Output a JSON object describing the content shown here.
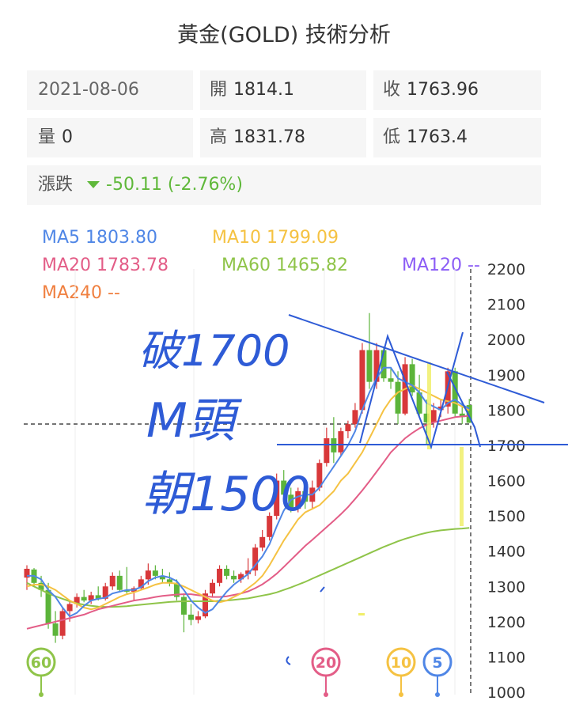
{
  "header": {
    "title": "黃金(GOLD) 技術分析"
  },
  "info": {
    "date": "2021-08-06",
    "open_label": "開",
    "open": "1814.1",
    "close_label": "收",
    "close": "1763.96",
    "volume_label": "量",
    "volume": "0",
    "high_label": "高",
    "high": "1831.78",
    "low_label": "低",
    "low": "1763.4",
    "change_label": "漲跌",
    "change": "-50.11 (-2.76%)"
  },
  "ma_legend": {
    "ma5": "MA5 1803.80",
    "ma10": "MA10 1799.09",
    "ma20": "MA20 1783.78",
    "ma60": "MA60 1465.82",
    "ma120": "MA120 --",
    "ma240": "MA240 --"
  },
  "colors": {
    "up": "#d8383a",
    "down": "#5cb43a",
    "ma5": "#4f86e6",
    "ma10": "#f5c242",
    "ma20": "#e35d87",
    "ma60": "#8fc449",
    "ma120": "#8b5cf6",
    "ma240": "#f08040",
    "annotation": "#2e5bd6",
    "highlight": "#f0ee6a"
  },
  "badges": [
    "60",
    "20",
    "10",
    "5"
  ],
  "annotations": {
    "line1": "破1700",
    "line2": "M頭",
    "line3": "朝1500"
  },
  "chart_data": {
    "type": "candlestick",
    "ylim": [
      1000,
      2200
    ],
    "y_ticks": [
      "2200",
      "2100",
      "2000",
      "1900",
      "1800",
      "1700",
      "1600",
      "1500",
      "1400",
      "1300",
      "1200",
      "1100",
      "1000"
    ],
    "candles": [
      {
        "o": 1325,
        "h": 1360,
        "l": 1290,
        "c": 1350
      },
      {
        "o": 1348,
        "h": 1352,
        "l": 1300,
        "c": 1310
      },
      {
        "o": 1310,
        "h": 1330,
        "l": 1270,
        "c": 1290
      },
      {
        "o": 1290,
        "h": 1310,
        "l": 1180,
        "c": 1195
      },
      {
        "o": 1195,
        "h": 1230,
        "l": 1140,
        "c": 1160
      },
      {
        "o": 1160,
        "h": 1240,
        "l": 1150,
        "c": 1230
      },
      {
        "o": 1230,
        "h": 1260,
        "l": 1200,
        "c": 1250
      },
      {
        "o": 1250,
        "h": 1280,
        "l": 1240,
        "c": 1270
      },
      {
        "o": 1270,
        "h": 1290,
        "l": 1255,
        "c": 1260
      },
      {
        "o": 1260,
        "h": 1285,
        "l": 1250,
        "c": 1275
      },
      {
        "o": 1275,
        "h": 1300,
        "l": 1260,
        "c": 1265
      },
      {
        "o": 1265,
        "h": 1310,
        "l": 1260,
        "c": 1300
      },
      {
        "o": 1300,
        "h": 1340,
        "l": 1290,
        "c": 1330
      },
      {
        "o": 1330,
        "h": 1345,
        "l": 1285,
        "c": 1290
      },
      {
        "o": 1290,
        "h": 1355,
        "l": 1280,
        "c": 1285
      },
      {
        "o": 1285,
        "h": 1300,
        "l": 1260,
        "c": 1295
      },
      {
        "o": 1295,
        "h": 1330,
        "l": 1290,
        "c": 1320
      },
      {
        "o": 1320,
        "h": 1365,
        "l": 1305,
        "c": 1345
      },
      {
        "o": 1345,
        "h": 1360,
        "l": 1320,
        "c": 1330
      },
      {
        "o": 1330,
        "h": 1350,
        "l": 1310,
        "c": 1320
      },
      {
        "o": 1320,
        "h": 1340,
        "l": 1300,
        "c": 1310
      },
      {
        "o": 1310,
        "h": 1320,
        "l": 1260,
        "c": 1270
      },
      {
        "o": 1270,
        "h": 1280,
        "l": 1170,
        "c": 1220
      },
      {
        "o": 1220,
        "h": 1250,
        "l": 1190,
        "c": 1205
      },
      {
        "o": 1205,
        "h": 1230,
        "l": 1195,
        "c": 1215
      },
      {
        "o": 1215,
        "h": 1290,
        "l": 1210,
        "c": 1280
      },
      {
        "o": 1280,
        "h": 1320,
        "l": 1270,
        "c": 1310
      },
      {
        "o": 1310,
        "h": 1360,
        "l": 1300,
        "c": 1350
      },
      {
        "o": 1350,
        "h": 1360,
        "l": 1320,
        "c": 1330
      },
      {
        "o": 1330,
        "h": 1345,
        "l": 1310,
        "c": 1320
      },
      {
        "o": 1320,
        "h": 1340,
        "l": 1310,
        "c": 1335
      },
      {
        "o": 1335,
        "h": 1380,
        "l": 1320,
        "c": 1345
      },
      {
        "o": 1345,
        "h": 1420,
        "l": 1330,
        "c": 1410
      },
      {
        "o": 1410,
        "h": 1460,
        "l": 1400,
        "c": 1440
      },
      {
        "o": 1440,
        "h": 1510,
        "l": 1430,
        "c": 1500
      },
      {
        "o": 1500,
        "h": 1620,
        "l": 1490,
        "c": 1600
      },
      {
        "o": 1600,
        "h": 1630,
        "l": 1540,
        "c": 1560
      },
      {
        "o": 1560,
        "h": 1580,
        "l": 1510,
        "c": 1520
      },
      {
        "o": 1520,
        "h": 1580,
        "l": 1510,
        "c": 1570
      },
      {
        "o": 1570,
        "h": 1580,
        "l": 1520,
        "c": 1540
      },
      {
        "o": 1540,
        "h": 1600,
        "l": 1520,
        "c": 1580
      },
      {
        "o": 1580,
        "h": 1660,
        "l": 1570,
        "c": 1650
      },
      {
        "o": 1650,
        "h": 1750,
        "l": 1640,
        "c": 1720
      },
      {
        "o": 1720,
        "h": 1780,
        "l": 1650,
        "c": 1680
      },
      {
        "o": 1680,
        "h": 1750,
        "l": 1670,
        "c": 1740
      },
      {
        "o": 1740,
        "h": 1770,
        "l": 1720,
        "c": 1760
      },
      {
        "o": 1760,
        "h": 1820,
        "l": 1750,
        "c": 1800
      },
      {
        "o": 1800,
        "h": 1990,
        "l": 1790,
        "c": 1970
      },
      {
        "o": 1970,
        "h": 2075,
        "l": 1860,
        "c": 1880
      },
      {
        "o": 1880,
        "h": 1990,
        "l": 1860,
        "c": 1970
      },
      {
        "o": 1970,
        "h": 1980,
        "l": 1880,
        "c": 1890
      },
      {
        "o": 1890,
        "h": 1920,
        "l": 1860,
        "c": 1880
      },
      {
        "o": 1880,
        "h": 1910,
        "l": 1760,
        "c": 1790
      },
      {
        "o": 1790,
        "h": 1950,
        "l": 1785,
        "c": 1930
      },
      {
        "o": 1930,
        "h": 1945,
        "l": 1840,
        "c": 1850
      },
      {
        "o": 1850,
        "h": 1900,
        "l": 1780,
        "c": 1790
      },
      {
        "o": 1790,
        "h": 1830,
        "l": 1700,
        "c": 1765
      },
      {
        "o": 1765,
        "h": 1820,
        "l": 1750,
        "c": 1800
      },
      {
        "o": 1800,
        "h": 1830,
        "l": 1780,
        "c": 1810
      },
      {
        "o": 1810,
        "h": 1920,
        "l": 1790,
        "c": 1910
      },
      {
        "o": 1910,
        "h": 1920,
        "l": 1780,
        "c": 1790
      },
      {
        "o": 1790,
        "h": 1820,
        "l": 1760,
        "c": 1780
      },
      {
        "o": 1814.1,
        "h": 1831.78,
        "l": 1763.4,
        "c": 1763.96
      }
    ],
    "ma5": [
      1330,
      1330,
      1320,
      1290,
      1270,
      1240,
      1215,
      1225,
      1245,
      1260,
      1265,
      1268,
      1280,
      1285,
      1290,
      1290,
      1298,
      1315,
      1325,
      1330,
      1325,
      1315,
      1290,
      1260,
      1240,
      1225,
      1235,
      1260,
      1285,
      1305,
      1320,
      1335,
      1360,
      1385,
      1420,
      1470,
      1515,
      1545,
      1555,
      1560,
      1560,
      1580,
      1610,
      1640,
      1670,
      1700,
      1740,
      1800,
      1850,
      1890,
      1920,
      1920,
      1890,
      1880,
      1870,
      1850,
      1820,
      1810,
      1800,
      1820,
      1830,
      1815,
      1803.8
    ],
    "ma10": [
      1300,
      1305,
      1305,
      1300,
      1290,
      1275,
      1260,
      1250,
      1240,
      1235,
      1240,
      1250,
      1260,
      1270,
      1278,
      1283,
      1290,
      1297,
      1305,
      1310,
      1310,
      1308,
      1300,
      1290,
      1280,
      1270,
      1260,
      1255,
      1260,
      1270,
      1280,
      1295,
      1310,
      1330,
      1360,
      1395,
      1430,
      1460,
      1490,
      1510,
      1520,
      1530,
      1550,
      1570,
      1600,
      1620,
      1650,
      1680,
      1720,
      1760,
      1800,
      1830,
      1850,
      1860,
      1870,
      1860,
      1850,
      1840,
      1830,
      1825,
      1820,
      1810,
      1799.09
    ],
    "ma20": [
      1180,
      1185,
      1190,
      1195,
      1200,
      1205,
      1210,
      1215,
      1220,
      1228,
      1235,
      1240,
      1245,
      1250,
      1255,
      1260,
      1263,
      1266,
      1270,
      1273,
      1275,
      1277,
      1278,
      1278,
      1275,
      1272,
      1270,
      1270,
      1272,
      1276,
      1280,
      1286,
      1295,
      1306,
      1320,
      1336,
      1355,
      1375,
      1395,
      1415,
      1432,
      1450,
      1468,
      1486,
      1505,
      1525,
      1548,
      1572,
      1598,
      1625,
      1652,
      1680,
      1700,
      1720,
      1735,
      1748,
      1758,
      1765,
      1770,
      1775,
      1780,
      1782,
      1783.78
    ],
    "ma60": [
      1310,
      1300,
      1290,
      1280,
      1272,
      1265,
      1258,
      1252,
      1248,
      1245,
      1243,
      1242,
      1242,
      1243,
      1244,
      1246,
      1248,
      1250,
      1252,
      1254,
      1256,
      1257,
      1258,
      1258,
      1258,
      1258,
      1258,
      1259,
      1260,
      1262,
      1264,
      1266,
      1270,
      1274,
      1278,
      1283,
      1290,
      1297,
      1305,
      1313,
      1322,
      1331,
      1340,
      1349,
      1358,
      1367,
      1376,
      1385,
      1394,
      1403,
      1412,
      1420,
      1428,
      1435,
      1441,
      1447,
      1452,
      1456,
      1459,
      1461,
      1463,
      1464,
      1465.82
    ]
  }
}
